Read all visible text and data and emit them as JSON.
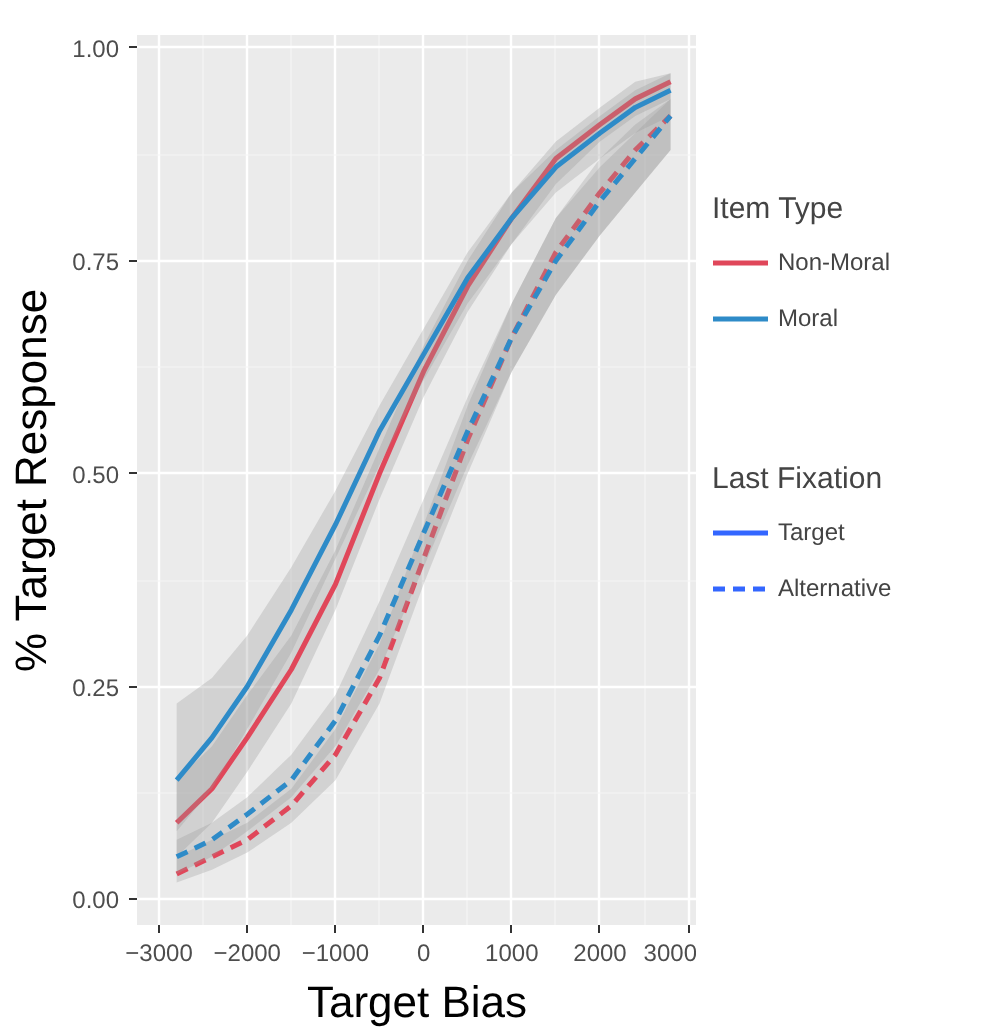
{
  "chart_data": {
    "type": "line",
    "xlabel": "Target Bias",
    "ylabel": "% Target Response",
    "legend_title": "Item Type",
    "xlim": [
      -3250,
      3100
    ],
    "ylim": [
      -0.03,
      1.015
    ],
    "xticks": [
      -3000,
      -2000,
      -1000,
      0,
      1000,
      2000,
      3000
    ],
    "yticks": [
      {
        "value": 0,
        "label": "0.00"
      },
      {
        "value": 0.25,
        "label": "0.25"
      },
      {
        "value": 0.5,
        "label": "0.50"
      },
      {
        "value": 0.75,
        "label": "0.75"
      },
      {
        "value": 1,
        "label": "1.00"
      }
    ],
    "grid": true,
    "legend": "right",
    "x": [
      -2800,
      -2400,
      -2000,
      -1500,
      -1000,
      -500,
      0,
      500,
      1000,
      1500,
      2000,
      2400,
      2800
    ],
    "series": [
      {
        "name": "Non-Moral",
        "color": "#e0475a",
        "line_style": "solid",
        "values": [
          0.09,
          0.13,
          0.19,
          0.27,
          0.37,
          0.5,
          0.62,
          0.72,
          0.8,
          0.87,
          0.91,
          0.94,
          0.96
        ],
        "lower": [
          0.05,
          0.09,
          0.15,
          0.23,
          0.34,
          0.47,
          0.59,
          0.69,
          0.77,
          0.84,
          0.89,
          0.92,
          0.94
        ],
        "upper": [
          0.14,
          0.18,
          0.24,
          0.31,
          0.41,
          0.53,
          0.65,
          0.75,
          0.83,
          0.89,
          0.93,
          0.96,
          0.97
        ]
      },
      {
        "name": "Moral",
        "color": "#2e8bc8",
        "line_style": "solid",
        "values": [
          0.14,
          0.19,
          0.25,
          0.34,
          0.44,
          0.55,
          0.64,
          0.73,
          0.8,
          0.86,
          0.9,
          0.93,
          0.95
        ],
        "lower": [
          0.08,
          0.13,
          0.2,
          0.29,
          0.4,
          0.51,
          0.61,
          0.7,
          0.77,
          0.83,
          0.87,
          0.9,
          0.92
        ],
        "upper": [
          0.23,
          0.26,
          0.31,
          0.39,
          0.48,
          0.58,
          0.67,
          0.76,
          0.83,
          0.88,
          0.92,
          0.95,
          0.97
        ]
      },
      {
        "color": "#e0475a",
        "line_style": "dashed",
        "values": [
          0.03,
          0.05,
          0.07,
          0.11,
          0.17,
          0.26,
          0.4,
          0.54,
          0.66,
          0.76,
          0.83,
          0.88,
          0.92
        ],
        "lower": [
          0.02,
          0.035,
          0.055,
          0.09,
          0.14,
          0.23,
          0.37,
          0.5,
          0.62,
          0.71,
          0.78,
          0.83,
          0.88
        ],
        "upper": [
          0.05,
          0.07,
          0.09,
          0.13,
          0.2,
          0.3,
          0.44,
          0.58,
          0.7,
          0.8,
          0.87,
          0.91,
          0.94
        ]
      },
      {
        "color": "#2e8bc8",
        "line_style": "dashed",
        "values": [
          0.05,
          0.07,
          0.1,
          0.14,
          0.21,
          0.31,
          0.43,
          0.55,
          0.66,
          0.75,
          0.82,
          0.87,
          0.92
        ],
        "lower": [
          0.03,
          0.05,
          0.08,
          0.12,
          0.18,
          0.27,
          0.39,
          0.51,
          0.62,
          0.71,
          0.78,
          0.83,
          0.88
        ],
        "upper": [
          0.07,
          0.09,
          0.12,
          0.17,
          0.24,
          0.35,
          0.47,
          0.59,
          0.7,
          0.8,
          0.86,
          0.9,
          0.94
        ]
      }
    ],
    "annotations": [
      "Last Fixation",
      "Target",
      "Alternative"
    ]
  }
}
